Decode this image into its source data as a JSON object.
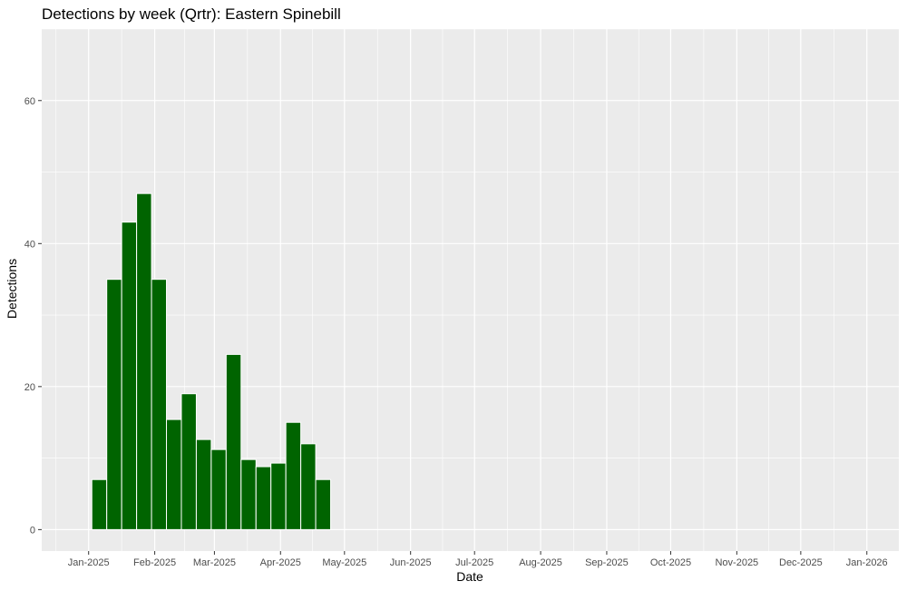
{
  "chart_data": {
    "type": "bar",
    "title": "Detections by week (Qrtr): Eastern Spinebill",
    "xlabel": "Date",
    "ylabel": "Detections",
    "bar_color": "#006400",
    "panel_background": "#ebebeb",
    "grid": true,
    "xlim": [
      "2024-12-10",
      "2026-01-16"
    ],
    "ylim": [
      -3,
      70
    ],
    "x_ticks": [
      {
        "date": "2025-01-01",
        "label": "Jan-2025"
      },
      {
        "date": "2025-02-01",
        "label": "Feb-2025"
      },
      {
        "date": "2025-03-01",
        "label": "Mar-2025"
      },
      {
        "date": "2025-04-01",
        "label": "Apr-2025"
      },
      {
        "date": "2025-05-01",
        "label": "May-2025"
      },
      {
        "date": "2025-06-01",
        "label": "Jun-2025"
      },
      {
        "date": "2025-07-01",
        "label": "Jul-2025"
      },
      {
        "date": "2025-08-01",
        "label": "Aug-2025"
      },
      {
        "date": "2025-09-01",
        "label": "Sep-2025"
      },
      {
        "date": "2025-10-01",
        "label": "Oct-2025"
      },
      {
        "date": "2025-11-01",
        "label": "Nov-2025"
      },
      {
        "date": "2025-12-01",
        "label": "Dec-2025"
      },
      {
        "date": "2026-01-01",
        "label": "Jan-2026"
      }
    ],
    "y_ticks": [
      {
        "value": 0,
        "label": "0"
      },
      {
        "value": 20,
        "label": "20"
      },
      {
        "value": 40,
        "label": "40"
      },
      {
        "value": 60,
        "label": "60"
      }
    ],
    "bars": [
      {
        "week": "2025-01-06",
        "value": 7
      },
      {
        "week": "2025-01-13",
        "value": 35
      },
      {
        "week": "2025-01-20",
        "value": 43
      },
      {
        "week": "2025-01-27",
        "value": 47
      },
      {
        "week": "2025-02-03",
        "value": 35
      },
      {
        "week": "2025-02-10",
        "value": 15.4
      },
      {
        "week": "2025-02-17",
        "value": 19
      },
      {
        "week": "2025-02-24",
        "value": 12.6
      },
      {
        "week": "2025-03-03",
        "value": 11.2
      },
      {
        "week": "2025-03-10",
        "value": 24.5
      },
      {
        "week": "2025-03-17",
        "value": 9.8
      },
      {
        "week": "2025-03-24",
        "value": 8.8
      },
      {
        "week": "2025-03-31",
        "value": 9.3
      },
      {
        "week": "2025-04-07",
        "value": 15
      },
      {
        "week": "2025-04-14",
        "value": 12
      },
      {
        "week": "2025-04-21",
        "value": 7
      }
    ]
  }
}
